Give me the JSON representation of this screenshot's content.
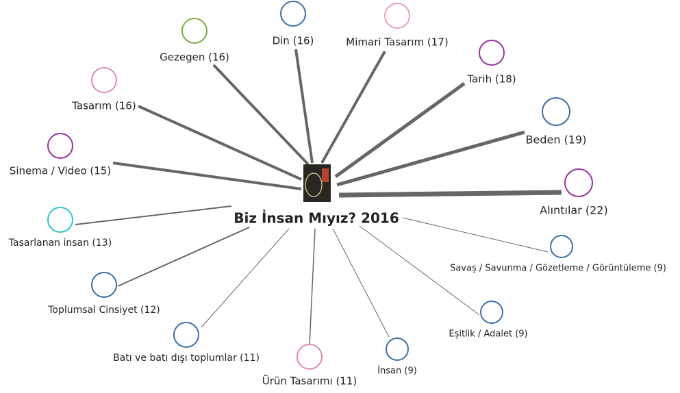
{
  "center": {
    "title": "Biz İnsan Mıyız? 2016"
  },
  "nodes": [
    {
      "label": "Din (16)",
      "color": "#3a6ea5"
    },
    {
      "label": "Mimari Tasarım (17)",
      "color": "#ee9ac0"
    },
    {
      "label": "Gezegen (16)",
      "color": "#7aac3a"
    },
    {
      "label": "Tarih (18)",
      "color": "#9b2fa0"
    },
    {
      "label": "Tasarım (16)",
      "color": "#e08ab0"
    },
    {
      "label": "Beden (19)",
      "color": "#3a6ea5"
    },
    {
      "label": "Sinema / Video (15)",
      "color": "#9b2fa0"
    },
    {
      "label": "Alıntılar (22)",
      "color": "#9b2fa0"
    },
    {
      "label": "Tasarlanan insan (13)",
      "color": "#2ac6c6"
    },
    {
      "label": "Savaş / Savunma / Gözetleme / Görüntüleme (9)",
      "color": "#3a6ea5"
    },
    {
      "label": "Toplumsal Cinsiyet (12)",
      "color": "#3a6ea5"
    },
    {
      "label": "Eşitlik / Adalet (9)",
      "color": "#3a6ea5"
    },
    {
      "label": "Batı ve batı dışı toplumlar (11)",
      "color": "#3a6ea5"
    },
    {
      "label": "Ürün Tasarımı (11)",
      "color": "#e08ab0"
    },
    {
      "label": "İnsan (9)",
      "color": "#3a6ea5"
    }
  ]
}
